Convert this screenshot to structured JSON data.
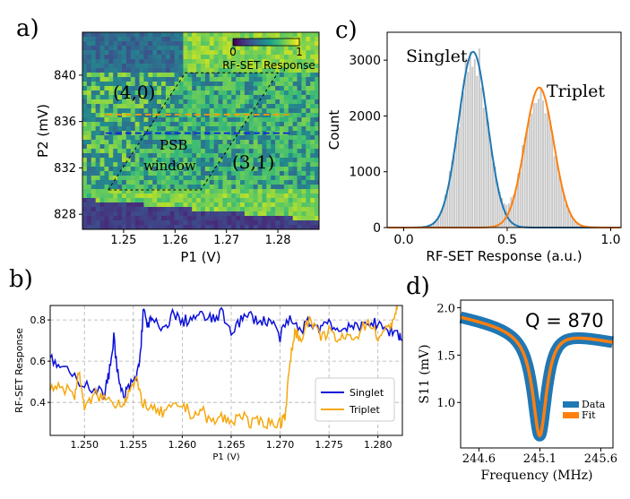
{
  "panel_labels": {
    "a": "a)",
    "b": "b)",
    "c": "c)",
    "d": "d)"
  },
  "chart_data": [
    {
      "panel": "a",
      "type": "heatmap",
      "xlabel": "P1 (V)",
      "ylabel": "P2 (mV)",
      "xlim": [
        1.242,
        1.288
      ],
      "ylim": [
        826.7,
        843.7
      ],
      "xticks": [
        1.25,
        1.26,
        1.27,
        1.28
      ],
      "xtick_labels": [
        "1.25",
        "1.26",
        "1.27",
        "1.28"
      ],
      "yticks": [
        828,
        832,
        836,
        840
      ],
      "ytick_labels": [
        "828",
        "832",
        "836",
        "840"
      ],
      "colorbar": {
        "label": "RF-SET Response",
        "min": 0,
        "max": 1,
        "tick_labels": [
          "0",
          "1"
        ]
      },
      "region_labels": [
        "(4,0)",
        "(3,1)"
      ],
      "window_label": [
        "PSB",
        "window"
      ],
      "psb_window_corners": [
        [
          1.247,
          830.1
        ],
        [
          1.262,
          840.2
        ],
        [
          1.28,
          840.2
        ],
        [
          1.265,
          830.1
        ]
      ],
      "cuts": [
        {
          "name": "Triplet",
          "p2": 836.6,
          "color": "#ff9900"
        },
        {
          "name": "Singlet",
          "p2": 835.0,
          "color": "#0a1fe0"
        }
      ]
    },
    {
      "panel": "b",
      "type": "line",
      "xlabel": "P1 (V)",
      "ylabel": "RF-SET Response",
      "xlim": [
        1.2465,
        1.2825
      ],
      "ylim": [
        0.24,
        0.87
      ],
      "xticks": [
        1.25,
        1.255,
        1.26,
        1.265,
        1.27,
        1.275,
        1.28
      ],
      "xtick_labels": [
        "1.250",
        "1.255",
        "1.260",
        "1.265",
        "1.270",
        "1.275",
        "1.280"
      ],
      "yticks": [
        0.4,
        0.6,
        0.8
      ],
      "ytick_labels": [
        "0.4",
        "0.6",
        "0.8"
      ],
      "grid": true,
      "legend_position": "lower-right",
      "series": [
        {
          "name": "Singlet",
          "color": "#0b10d8",
          "x": [
            1.2465,
            1.2475,
            1.249,
            1.2505,
            1.252,
            1.2525,
            1.253,
            1.2535,
            1.254,
            1.2545,
            1.2553,
            1.2557,
            1.256,
            1.2565,
            1.257,
            1.258,
            1.259,
            1.26,
            1.261,
            1.262,
            1.263,
            1.264,
            1.265,
            1.266,
            1.267,
            1.268,
            1.269,
            1.27,
            1.271,
            1.272,
            1.273,
            1.274,
            1.275,
            1.276,
            1.277,
            1.278,
            1.279,
            1.28,
            1.281,
            1.282,
            1.2825
          ],
          "y": [
            0.61,
            0.57,
            0.52,
            0.48,
            0.44,
            0.53,
            0.72,
            0.5,
            0.42,
            0.47,
            0.52,
            0.62,
            0.84,
            0.78,
            0.8,
            0.74,
            0.83,
            0.79,
            0.81,
            0.82,
            0.8,
            0.83,
            0.75,
            0.8,
            0.82,
            0.79,
            0.8,
            0.72,
            0.8,
            0.75,
            0.79,
            0.76,
            0.8,
            0.74,
            0.78,
            0.75,
            0.8,
            0.77,
            0.75,
            0.74,
            0.7
          ]
        },
        {
          "name": "Triplet",
          "color": "#f5a80f",
          "x": [
            1.2465,
            1.2475,
            1.249,
            1.2495,
            1.25,
            1.251,
            1.252,
            1.253,
            1.254,
            1.2545,
            1.2553,
            1.256,
            1.257,
            1.258,
            1.259,
            1.26,
            1.261,
            1.262,
            1.263,
            1.264,
            1.265,
            1.266,
            1.267,
            1.268,
            1.269,
            1.27,
            1.2705,
            1.271,
            1.2715,
            1.272,
            1.273,
            1.274,
            1.275,
            1.276,
            1.277,
            1.278,
            1.279,
            1.28,
            1.281,
            1.2815,
            1.282
          ],
          "y": [
            0.47,
            0.48,
            0.44,
            0.55,
            0.36,
            0.44,
            0.42,
            0.4,
            0.4,
            0.45,
            0.5,
            0.4,
            0.36,
            0.35,
            0.37,
            0.39,
            0.34,
            0.36,
            0.3,
            0.33,
            0.3,
            0.35,
            0.29,
            0.31,
            0.3,
            0.3,
            0.34,
            0.58,
            0.75,
            0.71,
            0.8,
            0.72,
            0.74,
            0.7,
            0.72,
            0.73,
            0.8,
            0.72,
            0.75,
            0.8,
            0.85
          ]
        }
      ]
    },
    {
      "panel": "c",
      "type": "bar",
      "subtype": "histogram with gaussian fits",
      "xlabel": "RF-SET Response (a.u.)",
      "ylabel": "Count",
      "xlim": [
        -0.08,
        1.05
      ],
      "ylim": [
        0,
        3500
      ],
      "xticks": [
        0,
        0.5,
        1
      ],
      "xtick_labels": [
        "0.0",
        "0.5",
        "1.0"
      ],
      "yticks": [
        0,
        1000,
        2000,
        3000
      ],
      "ytick_labels": [
        "0",
        "1000",
        "2000",
        "3000"
      ],
      "hist_color": "#c8c8c8",
      "fits": [
        {
          "name": "Singlet",
          "color": "#1f77b4",
          "amplitude": 3150,
          "center": 0.335,
          "sigma": 0.07
        },
        {
          "name": "Triplet",
          "color": "#ff7f0e",
          "amplitude": 2510,
          "center": 0.655,
          "sigma": 0.07
        }
      ]
    },
    {
      "panel": "d",
      "type": "line",
      "xlabel": "Frequency (MHz)",
      "ylabel": "S11 (mV)",
      "xlim": [
        244.45,
        245.7
      ],
      "ylim": [
        0.52,
        2.08
      ],
      "xticks": [
        244.6,
        245.1,
        245.6
      ],
      "xtick_labels": [
        "244.6",
        "245.1",
        "245.6"
      ],
      "yticks": [
        1.0,
        1.5,
        2.0
      ],
      "ytick_labels": [
        "1.0",
        "1.5",
        "2.0"
      ],
      "annotation": "Q = 870",
      "legend_position": "lower-right",
      "series": [
        {
          "name": "Data",
          "color": "#1f77b4"
        },
        {
          "name": "Fit",
          "color": "#ff7f0e"
        }
      ],
      "resonance": {
        "center": 245.1,
        "baseline_left": 1.93,
        "baseline_right": 1.63,
        "minimum": 0.65,
        "half_width": 0.14
      }
    }
  ]
}
